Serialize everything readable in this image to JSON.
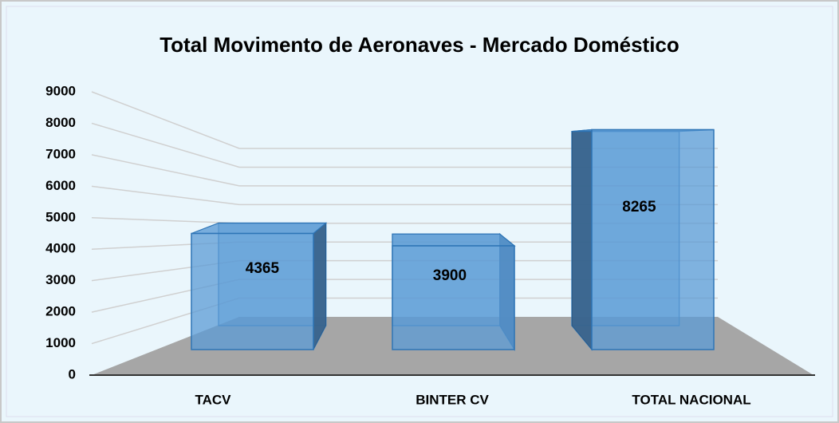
{
  "chart_data": {
    "type": "bar3d",
    "title": "Total Movimento de Aeronaves - Mercado Doméstico",
    "categories": [
      "TACV",
      "BINTER CV",
      "TOTAL NACIONAL"
    ],
    "values": [
      4365,
      3900,
      8265
    ],
    "color": "#5b9bd5",
    "ylim": [
      0,
      9000
    ],
    "yticks": [
      0,
      1000,
      2000,
      3000,
      4000,
      5000,
      6000,
      7000,
      8000,
      9000
    ],
    "grid": true
  }
}
